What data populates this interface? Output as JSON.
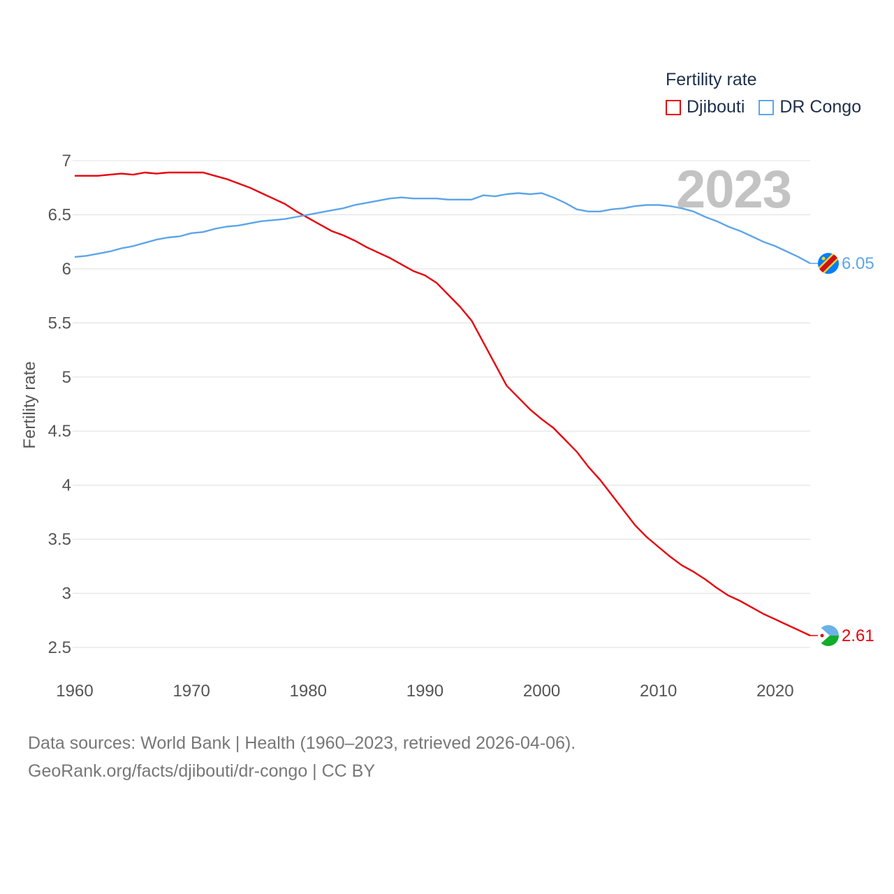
{
  "chart_data": {
    "type": "line",
    "title": "",
    "xlabel": "",
    "ylabel": "Fertility rate",
    "xlim": [
      1960,
      2023
    ],
    "ylim": [
      2.5,
      7
    ],
    "x_ticks": [
      "1960",
      "1970",
      "1980",
      "1990",
      "2000",
      "2010",
      "2020"
    ],
    "y_ticks": [
      "7",
      "6.5",
      "6",
      "5.5",
      "5",
      "4.5",
      "4",
      "3.5",
      "3",
      "2.5"
    ],
    "legend_title": "Fertility rate",
    "year_label": "2023",
    "x": [
      1960,
      1961,
      1962,
      1963,
      1964,
      1965,
      1966,
      1967,
      1968,
      1969,
      1970,
      1971,
      1972,
      1973,
      1974,
      1975,
      1976,
      1977,
      1978,
      1979,
      1980,
      1981,
      1982,
      1983,
      1984,
      1985,
      1986,
      1987,
      1988,
      1989,
      1990,
      1991,
      1992,
      1993,
      1994,
      1995,
      1996,
      1997,
      1998,
      1999,
      2000,
      2001,
      2002,
      2003,
      2004,
      2005,
      2006,
      2007,
      2008,
      2009,
      2010,
      2011,
      2012,
      2013,
      2014,
      2015,
      2016,
      2017,
      2018,
      2019,
      2020,
      2021,
      2022,
      2023
    ],
    "series": [
      {
        "name": "Djibouti",
        "color": "#e8000b",
        "end_label": "2.61",
        "values": [
          6.86,
          6.86,
          6.86,
          6.87,
          6.88,
          6.87,
          6.89,
          6.88,
          6.89,
          6.89,
          6.89,
          6.89,
          6.86,
          6.83,
          6.79,
          6.75,
          6.7,
          6.65,
          6.6,
          6.53,
          6.47,
          6.41,
          6.35,
          6.31,
          6.26,
          6.2,
          6.15,
          6.1,
          6.04,
          5.98,
          5.94,
          5.87,
          5.76,
          5.65,
          5.52,
          5.32,
          5.12,
          4.92,
          4.81,
          4.7,
          4.61,
          4.53,
          4.42,
          4.31,
          4.17,
          4.05,
          3.91,
          3.77,
          3.63,
          3.52,
          3.43,
          3.34,
          3.26,
          3.2,
          3.13,
          3.05,
          2.98,
          2.93,
          2.87,
          2.81,
          2.76,
          2.71,
          2.66,
          2.61
        ]
      },
      {
        "name": "DR Congo",
        "color": "#5da5ea",
        "end_label": "6.05",
        "values": [
          6.11,
          6.12,
          6.14,
          6.16,
          6.19,
          6.21,
          6.24,
          6.27,
          6.29,
          6.3,
          6.33,
          6.34,
          6.37,
          6.39,
          6.4,
          6.42,
          6.44,
          6.45,
          6.46,
          6.48,
          6.5,
          6.52,
          6.54,
          6.56,
          6.59,
          6.61,
          6.63,
          6.65,
          6.66,
          6.65,
          6.65,
          6.65,
          6.64,
          6.64,
          6.64,
          6.68,
          6.67,
          6.69,
          6.7,
          6.69,
          6.7,
          6.66,
          6.61,
          6.55,
          6.53,
          6.53,
          6.55,
          6.56,
          6.58,
          6.59,
          6.59,
          6.58,
          6.56,
          6.53,
          6.48,
          6.44,
          6.39,
          6.35,
          6.3,
          6.25,
          6.21,
          6.16,
          6.11,
          6.05
        ]
      }
    ]
  },
  "footer": {
    "line1": "Data sources: World Bank | Health (1960–2023, retrieved 2026-04-06).",
    "line2": "GeoRank.org/facts/djibouti/dr-congo | CC BY"
  },
  "flags": {
    "djibouti": "djibouti-flag-icon",
    "drc": "dr-congo-flag-icon"
  }
}
